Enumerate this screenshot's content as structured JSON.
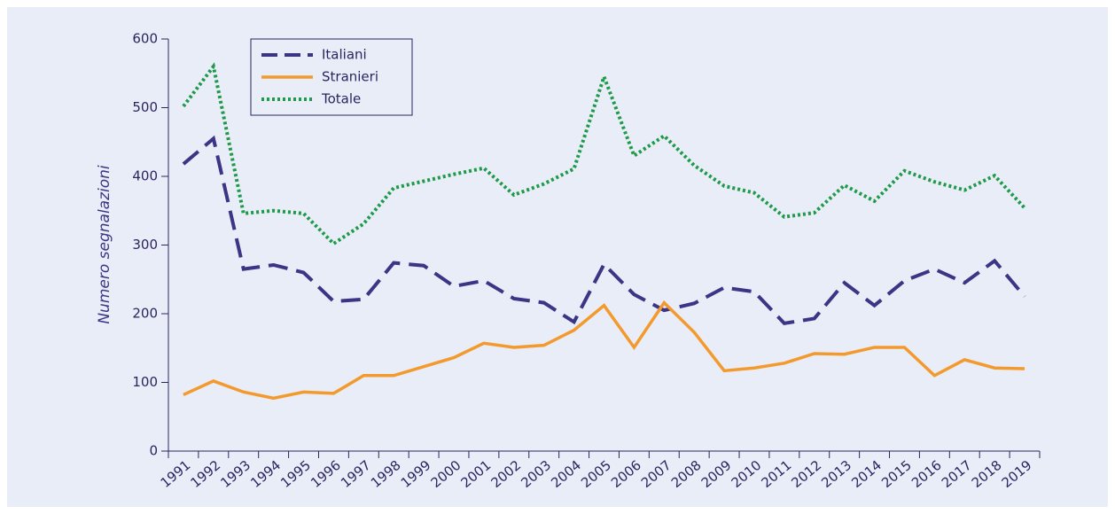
{
  "chart_data": {
    "type": "line",
    "y_label": "Numero segnalazioni",
    "categories": [
      "1991",
      "1992",
      "1993",
      "1994",
      "1995",
      "1996",
      "1997",
      "1998",
      "1999",
      "2000",
      "2001",
      "2002",
      "2003",
      "2004",
      "2005",
      "2006",
      "2007",
      "2008",
      "2009",
      "2010",
      "2011",
      "2012",
      "2013",
      "2014",
      "2015",
      "2016",
      "2017",
      "2018",
      "2019"
    ],
    "series": [
      {
        "name": "Italiani",
        "color": "#3a3585",
        "style": "dashed",
        "values": [
          418,
          455,
          265,
          271,
          260,
          218,
          221,
          274,
          270,
          240,
          248,
          222,
          216,
          188,
          272,
          228,
          205,
          215,
          238,
          232,
          186,
          193,
          245,
          212,
          248,
          265,
          245,
          277,
          225
        ]
      },
      {
        "name": "Stranieri",
        "color": "#f39a2e",
        "style": "solid",
        "values": [
          82,
          102,
          86,
          77,
          86,
          84,
          110,
          110,
          123,
          136,
          157,
          151,
          154,
          176,
          212,
          151,
          216,
          173,
          117,
          121,
          128,
          142,
          141,
          151,
          151,
          110,
          133,
          121,
          120
        ]
      },
      {
        "name": "Totale",
        "color": "#1f9a4a",
        "style": "dotted",
        "values": [
          502,
          560,
          346,
          350,
          346,
          302,
          331,
          383,
          393,
          403,
          412,
          373,
          389,
          411,
          545,
          430,
          459,
          416,
          386,
          376,
          341,
          347,
          387,
          364,
          408,
          392,
          380,
          401,
          354
        ]
      }
    ],
    "ylim": [
      0,
      600
    ],
    "yticks": [
      0,
      100,
      200,
      300,
      400,
      500,
      600
    ],
    "legend": "upper left"
  }
}
